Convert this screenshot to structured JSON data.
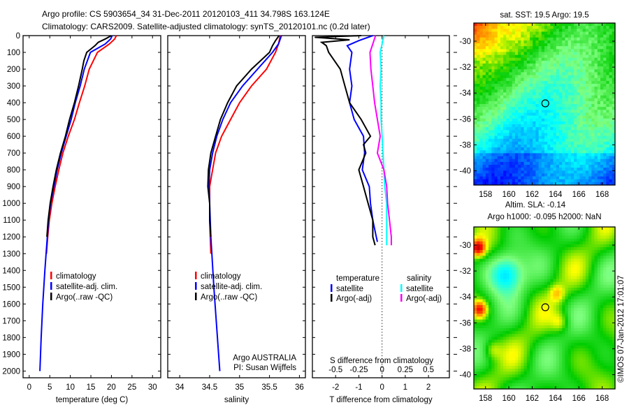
{
  "title": {
    "line1": "Argo profile: CS 5903654_34 31-Dec-2011 20120103_411 34.798S 163.124E",
    "line2": "Climatology: CARS2009. Satellite-adjusted climatology: synTS_20120101.nc (0.2d later)"
  },
  "colors": {
    "climatology": "#ff0000",
    "satellite": "#0000ff",
    "argo": "#000000",
    "sal_satellite": "#00ffff",
    "sal_argo": "#ff00ff"
  },
  "chart_data": [
    {
      "type": "line",
      "id": "temperature",
      "xlabel": "temperature (deg C)",
      "xlim": [
        -1.5,
        32
      ],
      "ylim": [
        0,
        2040
      ],
      "xticks": [
        0,
        5,
        10,
        15,
        20,
        25,
        30
      ],
      "yticks": [
        0,
        100,
        200,
        300,
        400,
        500,
        600,
        700,
        800,
        900,
        1000,
        1100,
        1200,
        1300,
        1400,
        1500,
        1600,
        1700,
        1800,
        1900,
        2000
      ],
      "legend": [
        "climatology",
        "satellite-adj. clim.",
        "Argo(..raw -QC)"
      ],
      "series": [
        {
          "name": "climatology",
          "color": "#ff0000",
          "depth": [
            0,
            20,
            50,
            100,
            200,
            300,
            400,
            500,
            600,
            700,
            800,
            900,
            1000,
            1100,
            1200,
            1300
          ],
          "values": [
            21.2,
            20.8,
            19.5,
            16.6,
            14.6,
            13.5,
            12.2,
            11.0,
            9.5,
            8.2,
            7.2,
            6.3,
            5.5,
            4.9,
            4.5,
            4.2
          ]
        },
        {
          "name": "satellite-adj. clim.",
          "color": "#0000ff",
          "depth": [
            0,
            20,
            50,
            100,
            200,
            300,
            400,
            500,
            600,
            700,
            800,
            900,
            1000,
            1100,
            1200,
            1400,
            1600,
            1800,
            2000
          ],
          "values": [
            20.2,
            19.8,
            18.5,
            14.9,
            13.4,
            12.4,
            11.2,
            10.2,
            9.0,
            7.8,
            6.8,
            6.0,
            5.2,
            4.7,
            4.4,
            3.8,
            3.3,
            2.9,
            2.6
          ]
        },
        {
          "name": "Argo(..raw -QC)",
          "color": "#000000",
          "depth": [
            0,
            20,
            40,
            60,
            100,
            150,
            200,
            300,
            400,
            500,
            600,
            700,
            800,
            900,
            1000,
            1100,
            1200
          ],
          "values": [
            20.0,
            18.5,
            16.8,
            16.0,
            14.0,
            13.3,
            12.9,
            12.0,
            11.0,
            9.8,
            8.8,
            7.6,
            6.6,
            5.8,
            5.1,
            4.6,
            4.3
          ]
        }
      ]
    },
    {
      "type": "line",
      "id": "salinity",
      "xlabel": "salinity",
      "xlim": [
        33.8,
        36.1
      ],
      "ylim": [
        0,
        2040
      ],
      "xticks": [
        34,
        34.5,
        35,
        35.5,
        36
      ],
      "legend": [
        "climatology",
        "satellite-adj. clim.",
        "Argo(..raw -QC)"
      ],
      "annotation": [
        "Argo AUSTRALIA",
        "PI: Susan Wijffels"
      ],
      "series": [
        {
          "name": "climatology",
          "color": "#ff0000",
          "depth": [
            0,
            50,
            100,
            200,
            300,
            400,
            500,
            600,
            700,
            800,
            900,
            1000,
            1100,
            1200,
            1300
          ],
          "values": [
            35.68,
            35.65,
            35.6,
            35.45,
            35.2,
            35.0,
            34.85,
            34.7,
            34.6,
            34.55,
            34.5,
            34.5,
            34.5,
            34.51,
            34.52
          ]
        },
        {
          "name": "satellite-adj. clim.",
          "color": "#0000ff",
          "depth": [
            0,
            50,
            100,
            200,
            300,
            400,
            500,
            600,
            700,
            800,
            900,
            1000,
            1200,
            1500,
            2000
          ],
          "values": [
            35.7,
            35.65,
            35.55,
            35.3,
            35.05,
            34.85,
            34.72,
            34.62,
            34.55,
            34.5,
            34.49,
            34.5,
            34.52,
            34.57,
            34.67
          ]
        },
        {
          "name": "Argo(..raw -QC)",
          "color": "#000000",
          "depth": [
            0,
            30,
            60,
            100,
            200,
            300,
            400,
            500,
            600,
            700,
            800,
            900,
            1000,
            1100,
            1200
          ],
          "values": [
            35.66,
            35.6,
            35.55,
            35.5,
            35.2,
            34.95,
            34.8,
            34.68,
            34.6,
            34.52,
            34.48,
            34.47,
            34.5,
            34.5,
            34.52
          ]
        }
      ]
    },
    {
      "type": "line",
      "id": "differences",
      "xlabel": "T difference from climatology",
      "x2label": "S difference from climatology",
      "xlim": [
        -3,
        2.9
      ],
      "ylim": [
        0,
        2040
      ],
      "xticks": [
        -2,
        -1,
        0,
        1,
        2
      ],
      "x2ticks": [
        -0.5,
        -0.25,
        0,
        0.25,
        0.5
      ],
      "legend": {
        "temperature_heading": "temperature",
        "salinity_heading": "salinity",
        "t_sat": "satellite",
        "t_argo": "Argo(-adj)",
        "s_sat": "satellite",
        "s_argo": "Argo(-adj)"
      },
      "series": [
        {
          "name": "T satellite",
          "color": "#0000ff",
          "units": "T",
          "depth": [
            0,
            30,
            60,
            100,
            200,
            300,
            400,
            500,
            600,
            700,
            800,
            900,
            1000,
            1100,
            1200,
            1230
          ],
          "values": [
            -0.4,
            -1.0,
            -1.5,
            -1.3,
            -1.4,
            -1.3,
            -1.4,
            -1.2,
            -0.8,
            -0.75,
            -0.85,
            -0.55,
            -0.5,
            -0.4,
            -0.25,
            -0.2
          ]
        },
        {
          "name": "T Argo(-adj)",
          "color": "#000000",
          "units": "T",
          "depth": [
            0,
            10,
            25,
            40,
            60,
            100,
            200,
            300,
            400,
            500,
            600,
            650,
            700,
            800,
            900,
            1000,
            1100,
            1200,
            1250
          ],
          "values": [
            -0.9,
            -2.9,
            -1.4,
            -2.6,
            -2.4,
            -2.3,
            -1.8,
            -1.6,
            -1.4,
            -0.9,
            -0.5,
            -0.8,
            -0.7,
            -1.0,
            -0.8,
            -0.6,
            -0.4,
            -0.4,
            -0.3
          ]
        },
        {
          "name": "S satellite",
          "color": "#00ffff",
          "units": "S",
          "depth": [
            0,
            50,
            100,
            200,
            300,
            400,
            500,
            600,
            700,
            800,
            900,
            1000,
            1100,
            1200,
            1250
          ],
          "values": [
            0.02,
            0.0,
            -0.02,
            -0.01,
            -0.02,
            -0.01,
            -0.01,
            0.0,
            0.01,
            0.02,
            0.03,
            0.05,
            0.05,
            0.05,
            0.05
          ]
        },
        {
          "name": "S Argo(-adj)",
          "color": "#ff00ff",
          "units": "S",
          "depth": [
            0,
            50,
            100,
            200,
            300,
            400,
            500,
            600,
            700,
            800,
            900,
            1000,
            1100,
            1200,
            1250
          ],
          "values": [
            -0.07,
            -0.1,
            -0.13,
            -0.12,
            -0.1,
            -0.08,
            -0.05,
            -0.02,
            -0.05,
            0.02,
            0.05,
            0.06,
            0.08,
            0.1,
            0.1
          ]
        }
      ]
    },
    {
      "type": "heatmap",
      "id": "sst-map",
      "title": "sat. SST: 19.5  Argo: 19.5",
      "xticks": [
        158,
        160,
        162,
        164,
        166,
        168
      ],
      "yticks": [
        -30,
        -32,
        -34,
        -36,
        -38,
        -40
      ],
      "xlim": [
        157,
        169.1
      ],
      "ylim": [
        -41.1,
        -28.6
      ],
      "marker": [
        163.124,
        -34.798
      ]
    },
    {
      "type": "heatmap",
      "id": "sla-map",
      "title": "Altim. SLA: -0.14",
      "subtitle": "Argo h1000: -0.095 h2000: NaN",
      "xticks": [
        158,
        160,
        162,
        164,
        166,
        168
      ],
      "yticks": [
        -30,
        -32,
        -34,
        -36,
        -38,
        -40
      ],
      "xlim": [
        157,
        169.1
      ],
      "ylim": [
        -41.1,
        -28.6
      ],
      "marker": [
        163.124,
        -34.798
      ]
    }
  ],
  "footer": {
    "credit": "©IMOS 07-Jan-2012 17:01:07"
  }
}
